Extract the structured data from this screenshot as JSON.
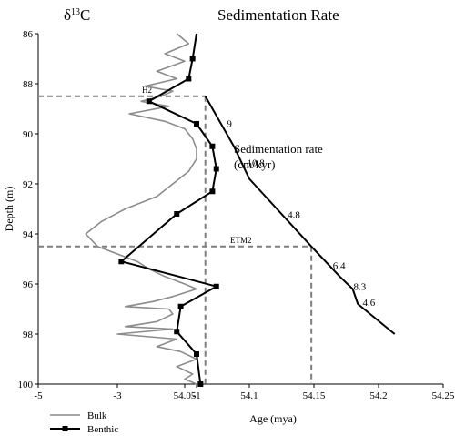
{
  "chart_data": {
    "type": "line",
    "title_left_parts": {
      "base": "δ",
      "sup": "13",
      "tail": "C"
    },
    "title_right": "Sedimentation Rate",
    "ylabel": "Depth (m)",
    "xlabel": "Age (mya)",
    "y_axis": {
      "range": [
        86,
        100
      ],
      "inverted": true,
      "ticks": [
        "86",
        "88",
        "90",
        "92",
        "94",
        "96",
        "98",
        "100"
      ]
    },
    "x_axis_left": {
      "range": [
        -5,
        0
      ],
      "ticks": [
        "-5",
        "-3",
        "-1"
      ]
    },
    "x_axis_right": {
      "range": [
        54.0,
        54.25
      ],
      "ticks": [
        "54.05",
        "54.1",
        "54.15",
        "54.2",
        "54.25"
      ]
    },
    "series": [
      {
        "name": "Bulk",
        "color": "#8c8c8c",
        "axis": "left",
        "x": [
          -1.5,
          -1.2,
          -1.8,
          -1.3,
          -2.0,
          -1.5,
          -2.3,
          -1.6,
          -1.9,
          -2.4,
          -1.7,
          -2.7,
          -1.8,
          -1.3,
          -1.1,
          -1.0,
          -1.0,
          -1.2,
          -1.6,
          -2.0,
          -2.8,
          -3.4,
          -3.8,
          -3.5,
          -3.0,
          -2.5,
          -2.2,
          -1.8,
          -1.3,
          -1.0,
          -1.6,
          -2.1,
          -2.8,
          -1.7,
          -1.6,
          -2.0,
          -2.8,
          -1.6,
          -3.0,
          -1.5,
          -2.0,
          -1.4,
          -1.0,
          -1.5,
          -1.1,
          -1.3,
          -1.0
        ],
        "y": [
          86.0,
          86.4,
          86.8,
          87.1,
          87.5,
          87.8,
          88.1,
          88.3,
          88.5,
          88.7,
          88.9,
          89.2,
          89.5,
          89.8,
          90.2,
          90.6,
          91.0,
          91.5,
          92.0,
          92.5,
          93.0,
          93.5,
          94.0,
          94.5,
          94.8,
          95.1,
          95.4,
          95.7,
          96.0,
          96.2,
          96.5,
          96.7,
          96.9,
          97.0,
          97.2,
          97.5,
          97.7,
          97.8,
          98.0,
          98.2,
          98.5,
          98.7,
          99.0,
          99.3,
          99.6,
          99.8,
          100.0
        ]
      },
      {
        "name": "Benthic",
        "color": "#000000",
        "marker": "square",
        "axis": "left",
        "x": [
          -1.0,
          -1.1,
          -1.2,
          -2.2,
          -1.0,
          -0.6,
          -0.5,
          -0.6,
          -1.5,
          -2.9,
          -0.5,
          -1.4,
          -1.5,
          -1.0,
          -0.9
        ],
        "y": [
          86.0,
          87.0,
          87.8,
          88.7,
          89.6,
          90.5,
          91.4,
          92.3,
          93.2,
          95.1,
          96.1,
          96.9,
          97.9,
          98.8,
          100.0
        ]
      },
      {
        "name": "Sedimentation rate",
        "color": "#000000",
        "axis": "right",
        "x": [
          54.066,
          54.088,
          54.1,
          54.148,
          54.17,
          54.18,
          54.184,
          54.2125
        ],
        "y": [
          88.5,
          90.5,
          91.8,
          94.5,
          95.7,
          96.2,
          96.8,
          98.0
        ],
        "segment_labels": [
          "9",
          "10.8",
          "4.8",
          "6.4",
          "8.3",
          "4.6"
        ]
      }
    ],
    "annotations": [
      {
        "text": "H2",
        "depth": 88.5,
        "age": 54.066
      },
      {
        "text": "ETM2",
        "depth": 94.5,
        "age": 54.148
      }
    ],
    "rate_label_lines": [
      "Sedimentation rate",
      "(cm/kyr)"
    ],
    "legend": {
      "position": "bottom-left",
      "entries": [
        "Bulk",
        "Benthic"
      ]
    }
  }
}
